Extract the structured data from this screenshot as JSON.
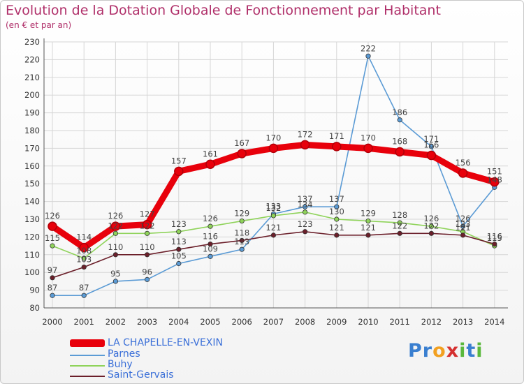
{
  "header": {
    "title": "Evolution de la Dotation Globale de Fonctionnement par Habitant",
    "subtitle": "(en € et par an)"
  },
  "logo": {
    "text": "Proxiti",
    "letters": [
      {
        "ch": "P",
        "color": "#3a7fd0"
      },
      {
        "ch": "r",
        "color": "#3a7fd0"
      },
      {
        "ch": "o",
        "color": "#f2a020"
      },
      {
        "ch": "x",
        "color": "#d53030"
      },
      {
        "ch": "i",
        "color": "#5ab83c"
      },
      {
        "ch": "t",
        "color": "#3a7fd0"
      },
      {
        "ch": "i",
        "color": "#5ab83c"
      }
    ]
  },
  "chart_data": {
    "type": "line",
    "title": "Evolution de la Dotation Globale de Fonctionnement par Habitant",
    "subtitle": "(en € et par an)",
    "xlabel": "",
    "ylabel": "",
    "x": [
      2000,
      2001,
      2002,
      2003,
      2004,
      2005,
      2006,
      2007,
      2008,
      2009,
      2010,
      2011,
      2012,
      2013,
      2014
    ],
    "ylim": [
      80,
      230
    ],
    "yticks": [
      80,
      90,
      100,
      110,
      120,
      130,
      140,
      150,
      160,
      170,
      180,
      190,
      200,
      210,
      220,
      230
    ],
    "grid": true,
    "legend": "bottom-left",
    "series": [
      {
        "name": "LA CHAPELLE-EN-VEXIN",
        "color": "#e8000b",
        "emphasis": true,
        "values": [
          126,
          114,
          126,
          127,
          157,
          161,
          167,
          170,
          172,
          171,
          170,
          168,
          166,
          156,
          151
        ],
        "labels": [
          "126",
          "114",
          "126",
          "127",
          "157",
          "161",
          "167",
          "170",
          "172",
          "171",
          "170",
          "168",
          "166",
          "156",
          "151"
        ]
      },
      {
        "name": "Parnes",
        "color": "#5b9bd5",
        "values": [
          87,
          87,
          95,
          96,
          105,
          109,
          113,
          133,
          137,
          137,
          222,
          186,
          171,
          126,
          148
        ],
        "labels": [
          "87",
          "87",
          "95",
          "96",
          "105",
          "109",
          "113",
          "133",
          "137",
          "137",
          "222",
          "186",
          "171",
          "126",
          "148"
        ]
      },
      {
        "name": "Buhy",
        "color": "#8fd35a",
        "values": [
          115,
          108,
          122,
          122,
          123,
          126,
          129,
          132,
          134,
          130,
          129,
          128,
          126,
          123,
          115
        ],
        "labels": [
          "115",
          "108",
          "122",
          "122",
          "123",
          "126",
          "129",
          "132",
          "134",
          "130",
          "129",
          "128",
          "126",
          "123",
          "115"
        ]
      },
      {
        "name": "Saint-Gervais",
        "color": "#6b1f2a",
        "values": [
          97,
          103,
          110,
          110,
          113,
          116,
          118,
          121,
          123,
          121,
          121,
          122,
          122,
          121,
          116
        ],
        "labels": [
          "97",
          "103",
          "110",
          "110",
          "113",
          "116",
          "118",
          "121",
          "123",
          "121",
          "121",
          "122",
          "122",
          "121",
          "116"
        ]
      }
    ]
  }
}
